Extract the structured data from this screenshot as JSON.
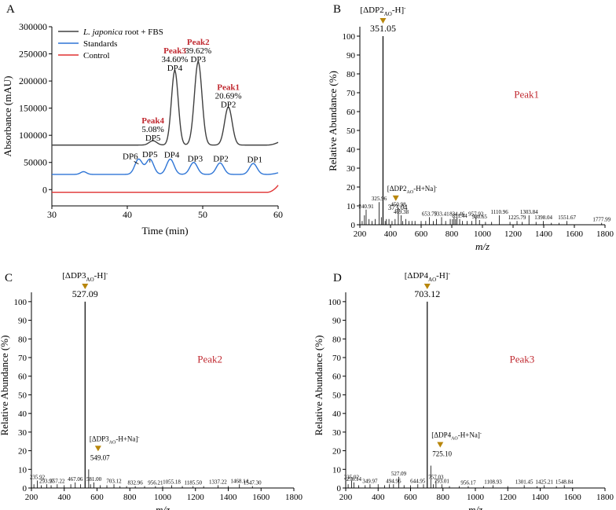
{
  "chart_data": [
    {
      "panel": "A",
      "type": "line",
      "xlabel": "Time (min)",
      "ylabel": "Absorbance (mAU)",
      "xlim": [
        30,
        60
      ],
      "ylim": [
        -30000,
        300000
      ],
      "xticks": [
        30,
        40,
        50,
        60
      ],
      "yticks": [
        0,
        50000,
        100000,
        150000,
        200000,
        250000,
        300000
      ],
      "legend": {
        "position": "top-left",
        "entries": [
          {
            "italic": "L. japonica",
            "rest": " root + FBS",
            "color": "#404040"
          },
          {
            "italic": "",
            "rest": "Standards",
            "color": "#2e75d6"
          },
          {
            "italic": "",
            "rest": "Control",
            "color": "#e03030"
          }
        ]
      },
      "series": [
        {
          "name": "L. japonica root + FBS",
          "color": "#404040",
          "baseline": 82000,
          "peaks": [
            {
              "x": 43.4,
              "height": 8000,
              "width": 0.5
            },
            {
              "x": 46.3,
              "height": 137000,
              "width": 0.45
            },
            {
              "x": 49.4,
              "height": 153000,
              "width": 0.5
            },
            {
              "x": 53.4,
              "height": 70000,
              "width": 0.5
            }
          ],
          "end": {
            "x": 60,
            "y": 87000
          }
        },
        {
          "name": "Standards",
          "color": "#2e75d6",
          "baseline": 28000,
          "peaks": [
            {
              "x": 34.2,
              "height": 5000,
              "width": 0.4
            },
            {
              "x": 41.5,
              "height": 28000,
              "width": 0.5
            },
            {
              "x": 43.0,
              "height": 28000,
              "width": 0.5
            },
            {
              "x": 45.7,
              "height": 28000,
              "width": 0.5
            },
            {
              "x": 48.8,
              "height": 22000,
              "width": 0.5
            },
            {
              "x": 52.3,
              "height": 21000,
              "width": 0.5
            },
            {
              "x": 56.7,
              "height": 20000,
              "width": 0.5
            }
          ],
          "end": {
            "x": 60,
            "y": 31000
          }
        },
        {
          "name": "Control",
          "color": "#e03030",
          "baseline": -5000,
          "peaks": [],
          "end": {
            "x": 60,
            "y": 8000
          }
        }
      ],
      "annotations": [
        {
          "peak": "Peak4",
          "pct": "5.08%",
          "dp": "DP5",
          "x": 43.4,
          "y": 90000
        },
        {
          "peak": "Peak3",
          "pct": "34.60%",
          "dp": "DP4",
          "x": 46.3,
          "y": 219000
        },
        {
          "peak": "Peak2",
          "pct": "39.62%",
          "dp": "DP3",
          "x": 49.4,
          "y": 235000
        },
        {
          "peak": "Peak1",
          "pct": "20.69%",
          "dp": "DP2",
          "x": 53.4,
          "y": 152000
        }
      ],
      "std_labels": [
        {
          "text": "DP6",
          "x": 40.4,
          "y": 56000
        },
        {
          "text": "DP5",
          "x": 43.0,
          "y": 60000
        },
        {
          "text": "DP4",
          "x": 45.9,
          "y": 59000
        },
        {
          "text": "DP3",
          "x": 49.0,
          "y": 52000
        },
        {
          "text": "DP2",
          "x": 52.4,
          "y": 52000
        },
        {
          "text": "DP1",
          "x": 56.9,
          "y": 50000
        }
      ]
    },
    {
      "panel": "B",
      "type": "bar",
      "peak_label": "Peak1",
      "xlabel": "m/z",
      "ylabel": "Relative Abundance (%)",
      "xlim": [
        200,
        1800
      ],
      "ylim": [
        0,
        105
      ],
      "xticks": [
        200,
        400,
        600,
        800,
        1000,
        1200,
        1400,
        1600,
        1800
      ],
      "yticks": [
        0,
        10,
        20,
        30,
        40,
        50,
        60,
        70,
        80,
        90,
        100
      ],
      "main_ion": {
        "base": "[ΔDP2",
        "sub": "AO",
        "post": "-H]",
        "sup": "-",
        "mz": 351.05,
        "value": "351.05"
      },
      "adduct_ion": {
        "base": "[ΔDP2",
        "sub": "AO",
        "post": "-H+Na]",
        "sup": "-",
        "mz": 373.04,
        "value": "373.04",
        "y": 3
      },
      "peaks": [
        [
          240.91,
          8,
          "240.91"
        ],
        [
          325.96,
          12,
          "325.96"
        ],
        [
          351.05,
          100,
          ""
        ],
        [
          373.04,
          3,
          ""
        ],
        [
          450.98,
          9,
          "450.98"
        ],
        [
          469.38,
          5,
          "469.38"
        ],
        [
          653.79,
          4,
          "653.79"
        ],
        [
          733.41,
          4,
          "733.41"
        ],
        [
          834.46,
          4,
          "834.46"
        ],
        [
          851.44,
          3,
          "851.44"
        ],
        [
          957.92,
          4,
          "957.92"
        ],
        [
          980.65,
          2.5,
          "980.65"
        ],
        [
          1110.96,
          5,
          "1110.96"
        ],
        [
          1225.79,
          2,
          "1225.79"
        ],
        [
          1303.84,
          5,
          "1303.84"
        ],
        [
          1398.04,
          2,
          "1398.04"
        ],
        [
          1551.67,
          2,
          "1551.67"
        ],
        [
          1777.99,
          1,
          "1777.99"
        ],
        [
          215,
          2,
          ""
        ],
        [
          230,
          5,
          ""
        ],
        [
          260,
          3,
          ""
        ],
        [
          280,
          2,
          ""
        ],
        [
          300,
          3,
          ""
        ],
        [
          340,
          4,
          ""
        ],
        [
          365,
          2,
          ""
        ],
        [
          390,
          3,
          ""
        ],
        [
          410,
          2,
          ""
        ],
        [
          430,
          3,
          ""
        ],
        [
          480,
          2,
          ""
        ],
        [
          500,
          3,
          ""
        ],
        [
          520,
          2,
          ""
        ],
        [
          540,
          2,
          ""
        ],
        [
          560,
          2,
          ""
        ],
        [
          600,
          2,
          ""
        ],
        [
          630,
          2,
          ""
        ],
        [
          680,
          2,
          ""
        ],
        [
          700,
          3,
          ""
        ],
        [
          760,
          2,
          ""
        ],
        [
          790,
          3,
          ""
        ],
        [
          805,
          3,
          ""
        ],
        [
          815,
          4,
          ""
        ],
        [
          825,
          3,
          ""
        ],
        [
          870,
          2,
          ""
        ],
        [
          900,
          2,
          ""
        ],
        [
          930,
          2,
          ""
        ],
        [
          1020,
          1.5,
          ""
        ],
        [
          1060,
          1.5,
          ""
        ],
        [
          1180,
          1.5,
          ""
        ],
        [
          1260,
          1.5,
          ""
        ],
        [
          1350,
          1.5,
          ""
        ],
        [
          1450,
          1,
          ""
        ],
        [
          1500,
          1,
          ""
        ]
      ]
    },
    {
      "panel": "C",
      "type": "bar",
      "peak_label": "Peak2",
      "xlabel": "m/z",
      "ylabel": "Relative Abundance (%)",
      "xlim": [
        200,
        1800
      ],
      "ylim": [
        0,
        105
      ],
      "xticks": [
        200,
        400,
        600,
        800,
        1000,
        1200,
        1400,
        1600,
        1800
      ],
      "yticks": [
        0,
        10,
        20,
        30,
        40,
        50,
        60,
        70,
        80,
        90,
        100
      ],
      "main_ion": {
        "base": "[ΔDP3",
        "sub": "AO",
        "post": "-H]",
        "sup": "-",
        "mz": 527.09,
        "value": "527.09"
      },
      "adduct_ion": {
        "base": "[ΔDP3",
        "sub": "AO",
        "post": "-H+Na]",
        "sup": "-",
        "mz": 549.07,
        "value": "549.07",
        "y": 10
      },
      "peaks": [
        [
          235.92,
          4,
          "235.92"
        ],
        [
          293.97,
          2,
          "293.97"
        ],
        [
          357.22,
          2,
          "357.22"
        ],
        [
          467.06,
          3,
          "467.06"
        ],
        [
          527.09,
          100,
          ""
        ],
        [
          549.07,
          10,
          ""
        ],
        [
          581.0,
          3,
          "581.00"
        ],
        [
          703.12,
          2,
          "703.12"
        ],
        [
          832.96,
          1,
          "832.96"
        ],
        [
          956.21,
          1,
          "956.21"
        ],
        [
          1055.18,
          1.5,
          "1055.18"
        ],
        [
          1185.5,
          1,
          "1185.50"
        ],
        [
          1337.22,
          1.5,
          "1337.22"
        ],
        [
          1468.14,
          2,
          "1468.14"
        ],
        [
          1547.3,
          1,
          "1547.30"
        ],
        [
          215,
          2,
          ""
        ],
        [
          260,
          1.5,
          ""
        ],
        [
          320,
          1.5,
          ""
        ],
        [
          400,
          1.5,
          ""
        ],
        [
          440,
          2,
          ""
        ],
        [
          500,
          2,
          ""
        ],
        [
          560,
          2,
          ""
        ],
        [
          620,
          1.5,
          ""
        ],
        [
          660,
          1.5,
          ""
        ],
        [
          740,
          1,
          ""
        ],
        [
          780,
          1,
          ""
        ],
        [
          890,
          1,
          ""
        ],
        [
          1000,
          1,
          ""
        ],
        [
          1120,
          1,
          ""
        ],
        [
          1250,
          1,
          ""
        ],
        [
          1400,
          1,
          ""
        ]
      ]
    },
    {
      "panel": "D",
      "type": "bar",
      "peak_label": "Peak3",
      "xlabel": "m/z",
      "ylabel": "Relative Abundance (%)",
      "xlim": [
        200,
        1800
      ],
      "ylim": [
        0,
        105
      ],
      "xticks": [
        200,
        400,
        600,
        800,
        1000,
        1200,
        1400,
        1600,
        1800
      ],
      "yticks": [
        0,
        10,
        20,
        30,
        40,
        50,
        60,
        70,
        80,
        90,
        100
      ],
      "main_ion": {
        "base": "[ΔDP4",
        "sub": "AO",
        "post": "-H]",
        "sup": "-",
        "mz": 703.12,
        "value": "703.12"
      },
      "adduct_ion": {
        "base": "[ΔDP4",
        "sub": "AO",
        "post": "-H+Na]",
        "sup": "-",
        "mz": 725.1,
        "value": "725.10",
        "y": 12
      },
      "peaks": [
        [
          235.92,
          4,
          "235.92"
        ],
        [
          250.14,
          3,
          "250.14"
        ],
        [
          349.97,
          2,
          "349.97"
        ],
        [
          494.96,
          2,
          "494.96"
        ],
        [
          527.09,
          6,
          "527.09"
        ],
        [
          644.95,
          2,
          "644.95"
        ],
        [
          703.12,
          100,
          ""
        ],
        [
          725.1,
          12,
          ""
        ],
        [
          757.03,
          4,
          "757.03"
        ],
        [
          793.01,
          2,
          "793.01"
        ],
        [
          956.17,
          1,
          "956.17"
        ],
        [
          1108.93,
          1.5,
          "1108.93"
        ],
        [
          1301.45,
          1.5,
          "1301.45"
        ],
        [
          1425.21,
          1.5,
          "1425.21"
        ],
        [
          1548.84,
          1.5,
          "1548.84"
        ],
        [
          215,
          2,
          ""
        ],
        [
          280,
          1.5,
          ""
        ],
        [
          320,
          1.5,
          ""
        ],
        [
          400,
          2,
          ""
        ],
        [
          440,
          1.5,
          ""
        ],
        [
          470,
          2,
          ""
        ],
        [
          560,
          1.5,
          ""
        ],
        [
          600,
          1.5,
          ""
        ],
        [
          680,
          2,
          ""
        ],
        [
          740,
          2,
          ""
        ],
        [
          840,
          1,
          ""
        ],
        [
          900,
          1,
          ""
        ],
        [
          1050,
          1,
          ""
        ],
        [
          1200,
          1,
          ""
        ],
        [
          1380,
          1,
          ""
        ],
        [
          1500,
          1,
          ""
        ]
      ]
    }
  ]
}
